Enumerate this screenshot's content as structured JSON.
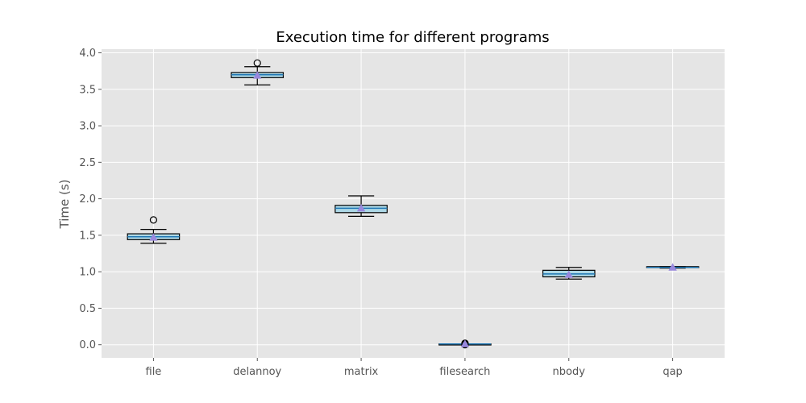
{
  "chart_data": {
    "type": "box",
    "title": "Execution time for different programs",
    "xlabel": "",
    "ylabel": "Time (s)",
    "ylim": [
      -0.18,
      4.05
    ],
    "yticks": [
      0.0,
      0.5,
      1.0,
      1.5,
      2.0,
      2.5,
      3.0,
      3.5,
      4.0
    ],
    "ytick_labels": [
      "0.0",
      "0.5",
      "1.0",
      "1.5",
      "2.0",
      "2.5",
      "3.0",
      "3.5",
      "4.0"
    ],
    "grid": true,
    "legend": "none",
    "categories": [
      "file",
      "delannoy",
      "matrix",
      "filesearch",
      "nbody",
      "qap"
    ],
    "boxes": [
      {
        "category": "file",
        "whisker_low": 1.39,
        "q1": 1.44,
        "median": 1.48,
        "q3": 1.52,
        "whisker_high": 1.58,
        "mean": 1.47,
        "outliers": [
          1.71
        ]
      },
      {
        "category": "delannoy",
        "whisker_low": 3.56,
        "q1": 3.66,
        "median": 3.7,
        "q3": 3.73,
        "whisker_high": 3.81,
        "mean": 3.69,
        "outliers": [
          3.86
        ]
      },
      {
        "category": "matrix",
        "whisker_low": 1.76,
        "q1": 1.81,
        "median": 1.87,
        "q3": 1.91,
        "whisker_high": 2.04,
        "mean": 1.87,
        "outliers": []
      },
      {
        "category": "filesearch",
        "whisker_low": 0.0,
        "q1": 0.0,
        "median": 0.01,
        "q3": 0.01,
        "whisker_high": 0.01,
        "mean": 0.01,
        "outliers": [
          0.0,
          0.01,
          0.02
        ]
      },
      {
        "category": "nbody",
        "whisker_low": 0.9,
        "q1": 0.93,
        "median": 0.97,
        "q3": 1.02,
        "whisker_high": 1.06,
        "mean": 0.96,
        "outliers": []
      },
      {
        "category": "qap",
        "whisker_low": 1.05,
        "q1": 1.06,
        "median": 1.06,
        "q3": 1.07,
        "whisker_high": 1.07,
        "mean": 1.06,
        "outliers": []
      }
    ],
    "colors": {
      "axes_background": "#e5e5e5",
      "grid": "#ffffff",
      "box_fill": "#add8e6",
      "box_edge": "#000000",
      "median": "#1f77b4",
      "mean_marker": "#9988dd",
      "outlier_edge": "#000000"
    }
  }
}
